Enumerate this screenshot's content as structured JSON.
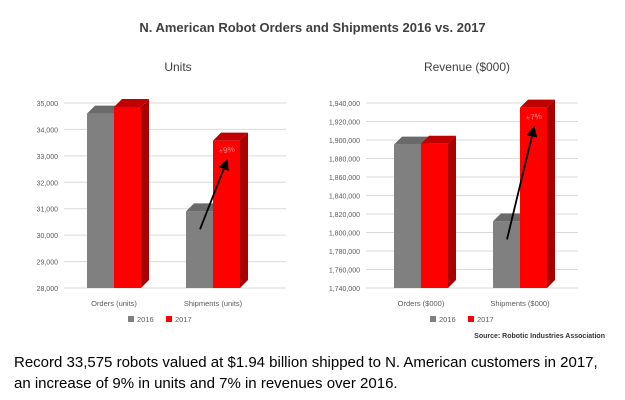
{
  "header": {
    "title": "N. American Robot Orders and Shipments 2016 vs. 2017"
  },
  "source_note": "Source: Robotic Industries Association",
  "caption": [
    "Record 33,575 robots valued at $1.94 billion shipped to N. American customers in 2017,",
    "an increase of 9% in units and 7% in revenues over 2016."
  ],
  "colors": {
    "2016": "#808080",
    "2016_top": "#6a6a6a",
    "2016_side": "#5e5e5e",
    "2017": "#ff0000",
    "2017_top": "#c00000",
    "2017_side": "#a80000",
    "axis_text": "#595959",
    "grid": "#d9d9d9"
  },
  "chart_data": [
    {
      "type": "bar",
      "title": "Units",
      "categories": [
        "Orders (units)",
        "Shipments (units)"
      ],
      "series": [
        {
          "name": "2016",
          "values": [
            34600,
            30900
          ]
        },
        {
          "name": "2017",
          "values": [
            34850,
            33575
          ]
        }
      ],
      "ylim": [
        28000,
        35000
      ],
      "yticks": [
        "28,000",
        "29,000",
        "30,000",
        "31,000",
        "32,000",
        "33,000",
        "34,000",
        "35,000"
      ],
      "annotation": "+9%",
      "legend": "bottom"
    },
    {
      "type": "bar",
      "title": "Revenue ($000)",
      "categories": [
        "Orders ($000)",
        "Shipments ($000)"
      ],
      "series": [
        {
          "name": "2016",
          "values": [
            1895000,
            1812000
          ]
        },
        {
          "name": "2017",
          "values": [
            1896000,
            1935000
          ]
        }
      ],
      "ylim": [
        1740000,
        1940000
      ],
      "yticks": [
        "1,740,000",
        "1,760,000",
        "1,780,000",
        "1,800,000",
        "1,820,000",
        "1,840,000",
        "1,860,000",
        "1,880,000",
        "1,900,000",
        "1,920,000",
        "1,940,000"
      ],
      "annotation": "+7%",
      "legend": "bottom"
    }
  ]
}
